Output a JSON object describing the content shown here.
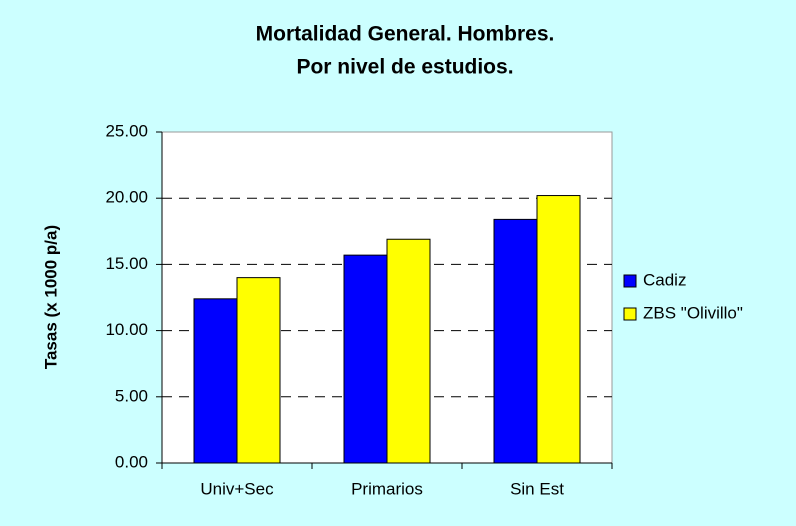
{
  "chart_data": {
    "type": "bar",
    "title": [
      "Mortalidad General. Hombres.",
      "Por nivel de estudios."
    ],
    "y_label": "Tasas (x 1000 p/a)",
    "categories": [
      "Univ+Sec",
      "Primarios",
      "Sin Est"
    ],
    "series": [
      {
        "name": "Cadiz",
        "color": "#0000ff",
        "values": [
          12.4,
          15.7,
          18.4
        ]
      },
      {
        "name": "ZBS \"Olivillo\"",
        "color": "#ffff00",
        "values": [
          14.0,
          16.9,
          20.2
        ]
      }
    ],
    "ylim": [
      0,
      25
    ],
    "yticks": [
      {
        "value": 0,
        "label": "0.00"
      },
      {
        "value": 5,
        "label": "5.00"
      },
      {
        "value": 10,
        "label": "10.00"
      },
      {
        "value": 15,
        "label": "15.00"
      },
      {
        "value": 20,
        "label": "20.00"
      },
      {
        "value": 25,
        "label": "25.00"
      }
    ],
    "grid": true,
    "legend": "right"
  }
}
